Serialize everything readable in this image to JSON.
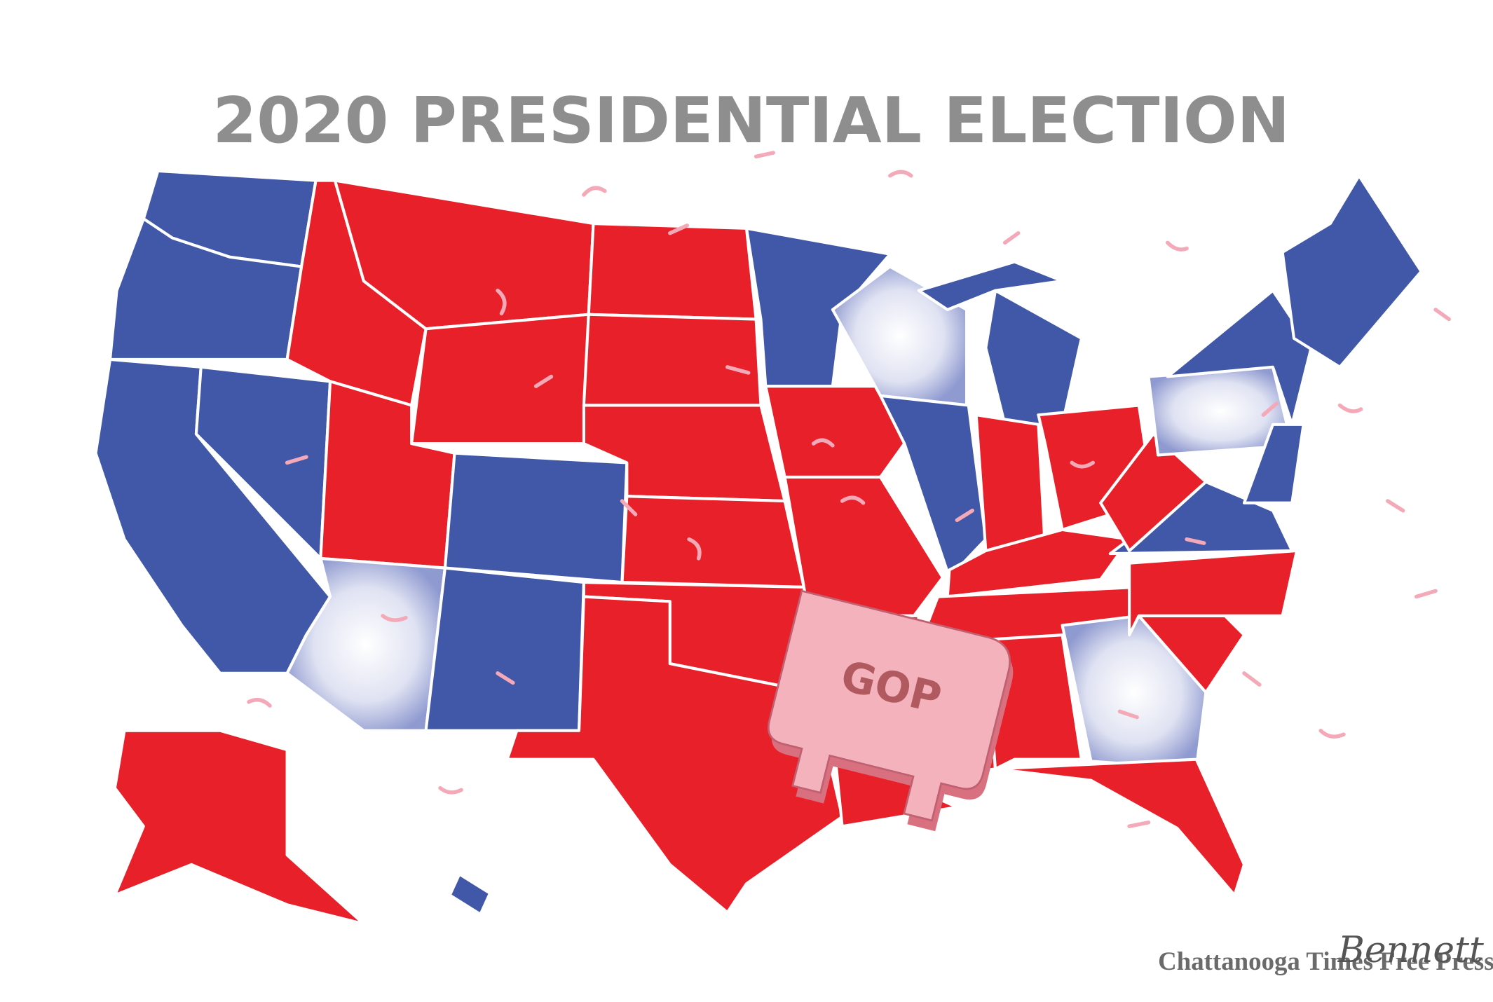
{
  "title": "2020 PRESIDENTIAL ELECTION",
  "emblem": "GOP",
  "credit": {
    "publisher": "Chattanooga Times Free Press",
    "artist": "Bennett"
  }
}
